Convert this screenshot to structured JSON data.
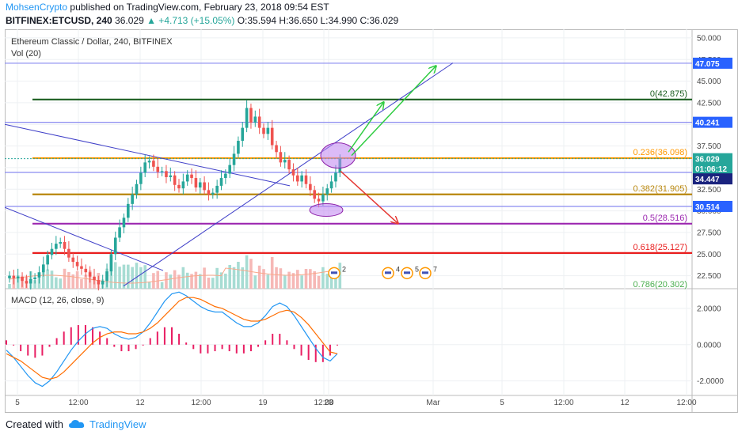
{
  "header": {
    "author": "MohsenCrypto",
    "published_text": "published on TradingView.com, February 23, 2018 09:54 EST",
    "symbol": "BITFINEX:ETCUSD, 240",
    "last": "36.029",
    "change": "▲ +4.713 (+15.05%)",
    "ohlc": "O:35.594 H:36.650 L:34.990 C:36.029"
  },
  "footer": {
    "created_with": "Created with",
    "brand": "TradingView"
  },
  "colors": {
    "up": "#26a69a",
    "down": "#ef5350",
    "fib_orange": "#ff9800",
    "fib_green": "#1b5e20",
    "fib_purple": "#9c27b0",
    "fib_red": "#e91e1e",
    "trend_blue": "#3f3fc8",
    "macd": "#2196f3",
    "signal": "#ff6d00",
    "hist": "#e91e63"
  },
  "chart_data": {
    "type": "line",
    "title": "Ethereum Classic / Dollar, 240, BITFINEX",
    "volume_label": "Vol (20)",
    "y_range": [
      21,
      51
    ],
    "y_ticks": [
      "50.000",
      "47.500",
      "45.000",
      "42.500",
      "40.000",
      "37.500",
      "35.000",
      "32.500",
      "30.000",
      "27.500",
      "25.000",
      "22.500"
    ],
    "x_ticks": [
      "5",
      "12:00",
      "12",
      "12:00",
      "19",
      "12:00",
      "23",
      "Mar",
      "5",
      "12:00",
      "12",
      "12:00"
    ],
    "price_badges": [
      {
        "label": "47.075",
        "value": 47.075,
        "color": "#2962ff"
      },
      {
        "label": "40.241",
        "value": 40.241,
        "color": "#2962ff"
      },
      {
        "label": "36.029",
        "value": 36.029,
        "color": "#26a69a"
      },
      {
        "label": "01:06:12",
        "value": 34.9,
        "color": "#26a69a"
      },
      {
        "label": "34.447",
        "value": 33.7,
        "color": "#1a237e"
      },
      {
        "label": "30.514",
        "value": 30.514,
        "color": "#2962ff"
      }
    ],
    "fib_levels": [
      {
        "label": "0(42.875)",
        "value": 42.875,
        "color": "#1b5e20"
      },
      {
        "label": "0.236(36.098)",
        "value": 36.098,
        "color": "#ff9800"
      },
      {
        "label": "0.382(31.905)",
        "value": 31.905,
        "color": "#b8860b"
      },
      {
        "label": "0.5(28.516)",
        "value": 28.516,
        "color": "#9c27b0"
      },
      {
        "label": "0.618(25.127)",
        "value": 25.127,
        "color": "#e91e1e"
      },
      {
        "label": "0.786(20.302)",
        "value": 20.302,
        "color": "#4caf50"
      }
    ],
    "h_lines": [
      47.075,
      40.241,
      34.447,
      30.514
    ],
    "close": [
      22.5,
      22.2,
      22.4,
      21.9,
      21.6,
      22.1,
      22.3,
      22.9,
      23.8,
      24.9,
      25.6,
      26.2,
      26.4,
      25.6,
      24.6,
      24.1,
      23.6,
      23.3,
      22.9,
      22.4,
      22.0,
      21.5,
      21.9,
      23.0,
      25.0,
      26.9,
      28.1,
      29.2,
      30.8,
      31.9,
      33.1,
      34.4,
      35.6,
      35.8,
      35.1,
      34.5,
      34.6,
      33.9,
      34.1,
      33.0,
      32.6,
      33.4,
      34.2,
      33.8,
      32.7,
      33.3,
      32.4,
      31.9,
      32.1,
      32.9,
      33.8,
      34.3,
      35.3,
      36.6,
      38.1,
      39.6,
      41.9,
      40.2,
      40.9,
      39.6,
      38.9,
      39.6,
      37.6,
      36.8,
      35.6,
      35.9,
      34.8,
      34.1,
      33.4,
      34.1,
      33.1,
      32.4,
      31.4,
      31.1,
      31.9,
      32.6,
      33.4,
      34.4,
      36.03
    ],
    "macd_y_range": [
      -2.8,
      3.0
    ],
    "macd_ticks": [
      "2.0000",
      "0.0000",
      "-2.0000"
    ],
    "macd_label": "MACD (12, 26, close, 9)",
    "series": [
      {
        "name": "MACD",
        "color": "#2196f3",
        "values": [
          -0.3,
          -0.7,
          -1.2,
          -1.7,
          -2.1,
          -2.3,
          -2.0,
          -1.5,
          -0.9,
          -0.3,
          0.2,
          0.6,
          0.9,
          1.0,
          0.9,
          0.6,
          0.4,
          0.3,
          0.4,
          0.7,
          1.2,
          1.8,
          2.4,
          2.8,
          2.9,
          2.7,
          2.4,
          2.1,
          1.9,
          1.8,
          1.8,
          1.5,
          1.2,
          1.0,
          1.0,
          1.2,
          1.6,
          2.1,
          2.3,
          2.1,
          1.6,
          1.0,
          0.4,
          -0.2,
          -0.7,
          -0.9,
          -0.5
        ]
      },
      {
        "name": "Signal",
        "color": "#ff6d00",
        "values": [
          -0.5,
          -0.7,
          -0.9,
          -1.2,
          -1.5,
          -1.8,
          -1.9,
          -1.8,
          -1.5,
          -1.1,
          -0.7,
          -0.3,
          0.1,
          0.4,
          0.6,
          0.7,
          0.7,
          0.6,
          0.6,
          0.7,
          0.9,
          1.2,
          1.6,
          2.0,
          2.4,
          2.6,
          2.6,
          2.5,
          2.3,
          2.1,
          2.0,
          1.8,
          1.6,
          1.4,
          1.3,
          1.3,
          1.4,
          1.6,
          1.8,
          1.9,
          1.8,
          1.5,
          1.1,
          0.6,
          0.1,
          -0.4,
          -0.5
        ]
      }
    ],
    "mini_labels": [
      "2",
      "4",
      "5",
      "7"
    ]
  }
}
